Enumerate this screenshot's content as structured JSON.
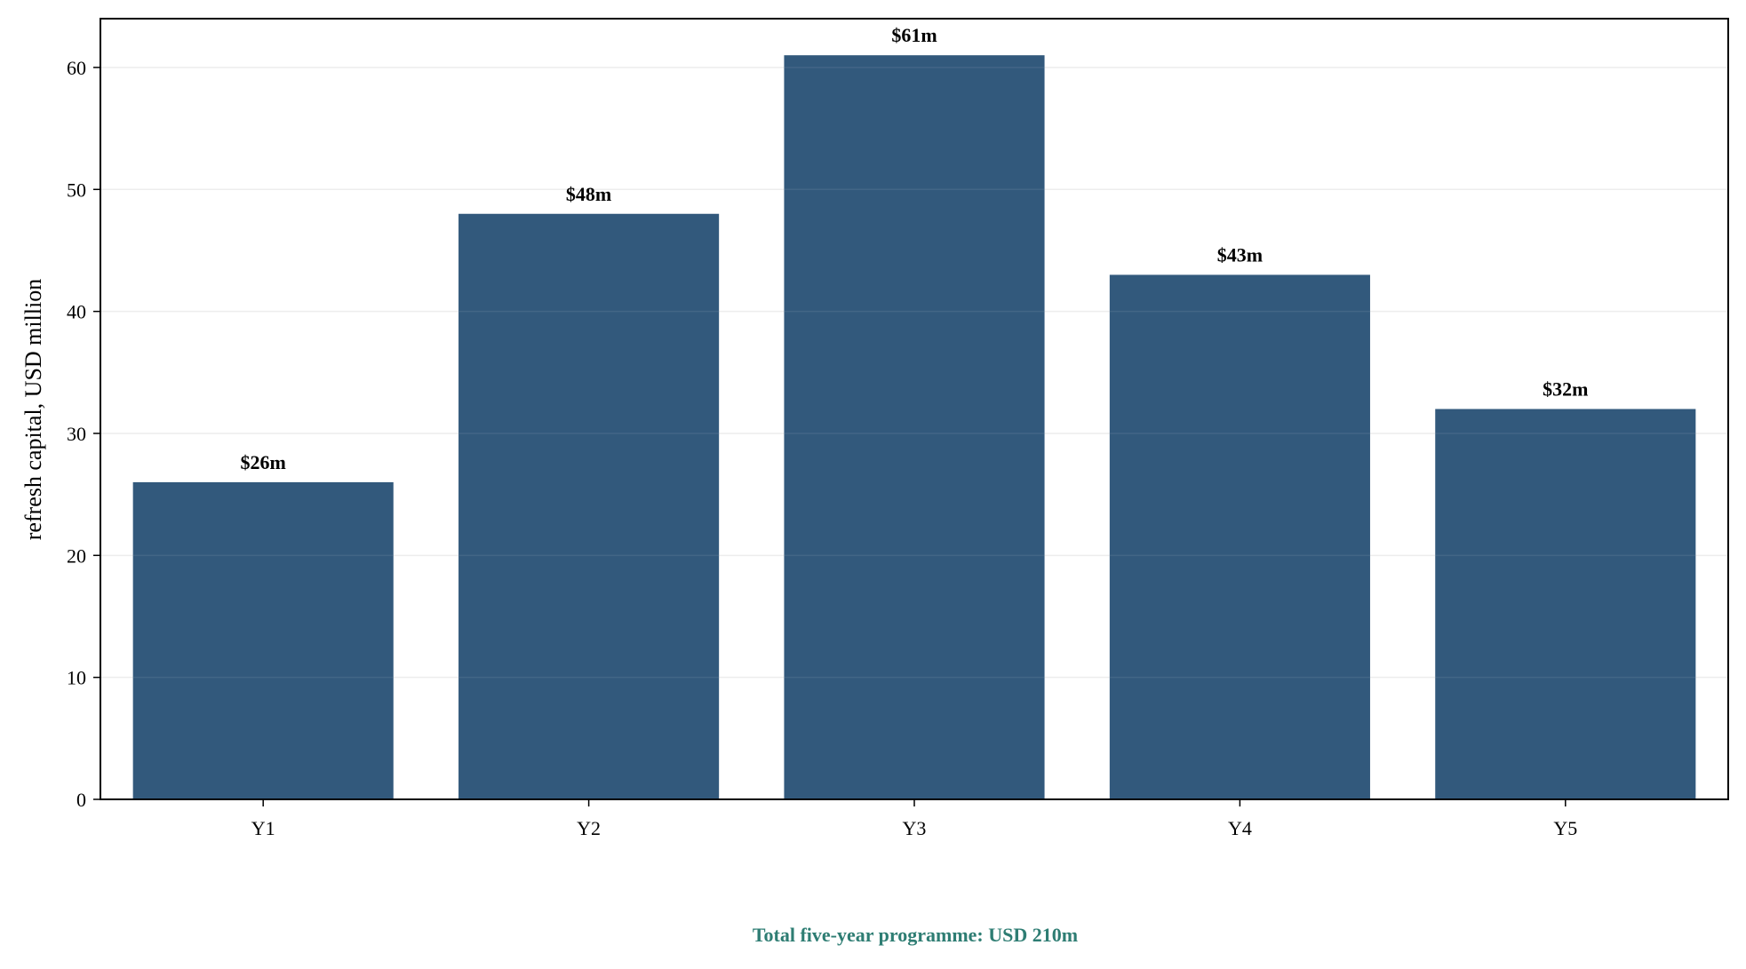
{
  "chart_data": {
    "type": "bar",
    "title": "",
    "xlabel": "",
    "ylabel": "refresh capital, USD million",
    "categories": [
      "Y1",
      "Y2",
      "Y3",
      "Y4",
      "Y5"
    ],
    "values": [
      26,
      48,
      61,
      43,
      32
    ],
    "data_labels": [
      "$26m",
      "$48m",
      "$61m",
      "$43m",
      "$32m"
    ],
    "ylim": [
      0,
      64
    ],
    "yticks": [
      0,
      10,
      20,
      30,
      40,
      50,
      60
    ],
    "grid": "horizontal",
    "legend": "none",
    "annotation": "Total five-year programme: USD 210m",
    "colors": {
      "bar": "#32597c",
      "annotation": "#2e7d73",
      "grid": "#ececec",
      "axis": "#000000"
    }
  }
}
